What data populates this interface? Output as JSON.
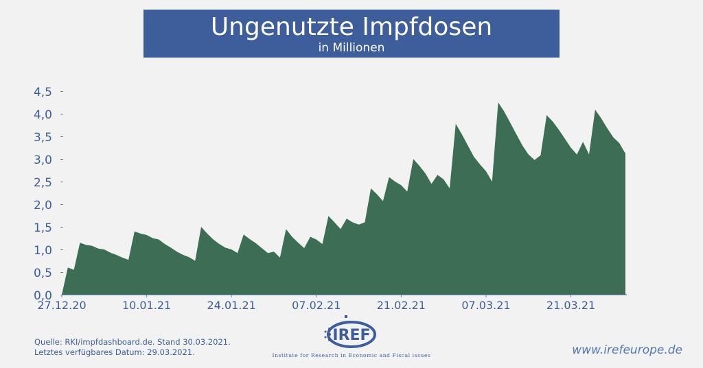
{
  "header": {
    "title": "Ungenutzte Impfdosen",
    "subtitle": "in Millionen"
  },
  "chart_data": {
    "type": "area",
    "ylim": [
      0,
      4.5
    ],
    "y_ticks": [
      "0,0",
      "0,5",
      "1,0",
      "1,5",
      "2,0",
      "2,5",
      "3,0",
      "3,5",
      "4,0",
      "4,5"
    ],
    "x_tick_labels": [
      "27.12.20",
      "10.01.21",
      "24.01.21",
      "07.02.21",
      "21.02.21",
      "07.03.21",
      "21.03.21"
    ],
    "x_tick_positions": [
      0,
      14,
      28,
      42,
      56,
      70,
      84
    ],
    "grid": false,
    "color": "#3d6e55",
    "series": [
      {
        "x": [
          0,
          1,
          2,
          3,
          4,
          5,
          6,
          7,
          8,
          9,
          10,
          11,
          12,
          13,
          14,
          15,
          16,
          17,
          18,
          19,
          20,
          21,
          22,
          23,
          24,
          25,
          26,
          27,
          28,
          29,
          30,
          31,
          32,
          33,
          34,
          35,
          36,
          37,
          38,
          39,
          40,
          41,
          42,
          43,
          44,
          45,
          46,
          47,
          48,
          49,
          50,
          51,
          52,
          53,
          54,
          55,
          56,
          57,
          58,
          59,
          60,
          61,
          62,
          63,
          64,
          65,
          66,
          67,
          68,
          69,
          70,
          71,
          72,
          73,
          74,
          75,
          76,
          77,
          78,
          79,
          80,
          81,
          82,
          83,
          84,
          85,
          86,
          87,
          88,
          89,
          90,
          91,
          92,
          93
        ],
        "values": [
          0.0,
          0.6,
          0.55,
          1.15,
          1.1,
          1.08,
          1.02,
          1.0,
          0.93,
          0.88,
          0.82,
          0.77,
          1.4,
          1.35,
          1.32,
          1.25,
          1.22,
          1.12,
          1.04,
          0.95,
          0.88,
          0.83,
          0.75,
          1.5,
          1.35,
          1.22,
          1.12,
          1.04,
          1.0,
          0.92,
          1.33,
          1.23,
          1.14,
          1.03,
          0.92,
          0.95,
          0.82,
          1.45,
          1.28,
          1.15,
          1.03,
          1.28,
          1.22,
          1.12,
          1.74,
          1.6,
          1.45,
          1.68,
          1.6,
          1.55,
          1.6,
          2.35,
          2.22,
          2.07,
          2.6,
          2.5,
          2.42,
          2.28,
          3.0,
          2.85,
          2.68,
          2.45,
          2.65,
          2.55,
          2.35,
          3.78,
          3.55,
          3.3,
          3.05,
          2.88,
          2.73,
          2.5,
          4.25,
          4.05,
          3.8,
          3.55,
          3.3,
          3.1,
          2.98,
          3.08,
          3.97,
          3.83,
          3.65,
          3.45,
          3.25,
          3.1,
          3.38,
          3.1,
          4.09,
          3.9,
          3.68,
          3.48,
          3.35,
          3.12
        ]
      }
    ]
  },
  "footer": {
    "source_line1": "Quelle: RKI/impfdashboard.de. Stand 30.03.2021.",
    "source_line2": "Letztes verfügbares Datum: 29.03.2021.",
    "website": "www.irefeurope.de"
  },
  "logo": {
    "name": "IREF",
    "tagline": "Institute for Research in Economic and Fiscal issues",
    "color": "#3d5d9b"
  }
}
